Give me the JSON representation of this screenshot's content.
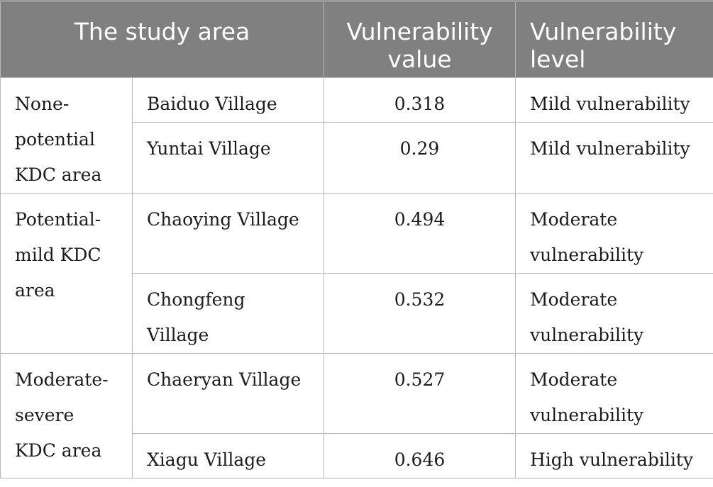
{
  "table": {
    "headers": {
      "study_area": "The study area",
      "vulnerability_value": "Vulnerability value",
      "vulnerability_level": "Vulnerability level"
    },
    "groups": [
      {
        "label": "None-potential KDC area",
        "rows": [
          {
            "village": "Baiduo Village",
            "value": "0.318",
            "level": "Mild vulnerability"
          },
          {
            "village": "Yuntai Village",
            "value": "0.29",
            "level": "Mild vulnerability"
          }
        ]
      },
      {
        "label": "Potential-mild KDC area",
        "rows": [
          {
            "village": "Chaoying Village",
            "value": "0.494",
            "level": "Moderate vulnerability"
          },
          {
            "village": "Chongfeng Village",
            "value": "0.532",
            "level": "Moderate vulnerability"
          }
        ]
      },
      {
        "label": "Moderate-severe KDC area",
        "rows": [
          {
            "village": "Chaeryan Village",
            "value": "0.527",
            "level": "Moderate vulnerability"
          },
          {
            "village": "Xiagu Village",
            "value": "0.646",
            "level": "High vulnerability"
          }
        ]
      }
    ]
  }
}
